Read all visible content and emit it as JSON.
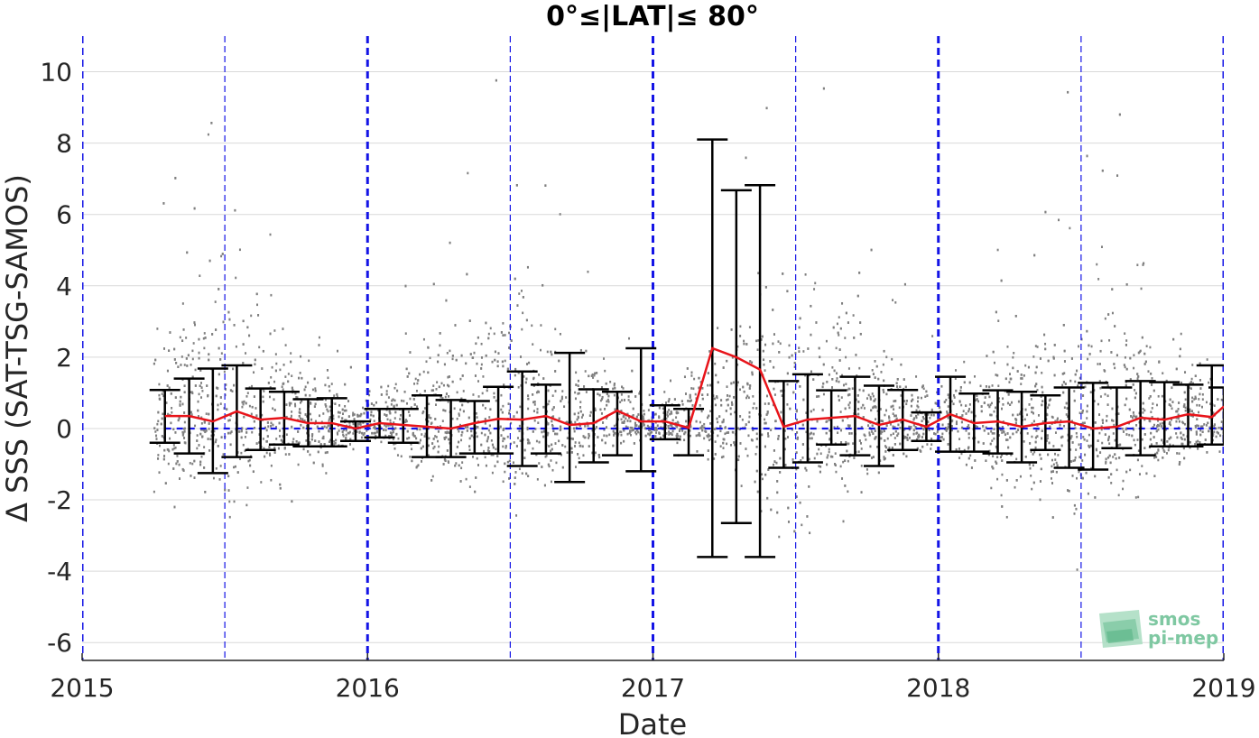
{
  "chart_data": {
    "type": "scatter",
    "title": "0°≤|LAT|≤ 80°",
    "xlabel": "Date",
    "ylabel": "Δ SSS (SAT-TSG-SAMOS)",
    "xlim": [
      2015.0,
      2019.0
    ],
    "ylim": [
      -6.5,
      11.0
    ],
    "x_ticks": [
      2015,
      2016,
      2017,
      2018,
      2019
    ],
    "x_tick_labels": [
      "2015",
      "2016",
      "2017",
      "2018",
      "2019"
    ],
    "y_ticks": [
      -6,
      -4,
      -2,
      0,
      2,
      4,
      6,
      8,
      10
    ],
    "y_tick_labels": [
      "-6",
      "-4",
      "-2",
      "0",
      "2",
      "4",
      "6",
      "8",
      "10"
    ],
    "grid": true,
    "zero_line": 0,
    "year_boundaries": [
      2015.0,
      2016.0,
      2017.0,
      2018.0,
      2019.0
    ],
    "mid_year_lines": [
      2015.5,
      2016.5,
      2017.5,
      2018.5
    ],
    "colors": {
      "scatter": "#808080",
      "mean_line": "#e8141a",
      "errorbar": "#000000",
      "reference": "#1414e6",
      "grid": "#d9d9d9"
    },
    "scatter_envelope": {
      "name": "individual differences",
      "x": [
        2015.25,
        2015.33,
        2015.42,
        2015.5,
        2015.58,
        2015.67,
        2015.75,
        2015.83,
        2015.92,
        2016.0,
        2016.08,
        2016.17,
        2016.25,
        2016.33,
        2016.42,
        2016.5,
        2016.58,
        2016.67,
        2016.75,
        2016.83,
        2016.92,
        2017.0,
        2017.08,
        2017.17,
        2017.25,
        2017.33,
        2017.42,
        2017.5,
        2017.58,
        2017.67,
        2017.75,
        2017.83,
        2017.92,
        2018.0,
        2018.08,
        2018.17,
        2018.25,
        2018.33,
        2018.42,
        2018.5,
        2018.58,
        2018.67,
        2018.75,
        2018.83,
        2018.92,
        2019.0
      ],
      "low": [
        -2.0,
        -2.5,
        -3.0,
        -3.5,
        -2.5,
        -2.0,
        -1.5,
        -1.5,
        -0.8,
        -0.4,
        -0.8,
        -1.5,
        -2.0,
        -2.5,
        -3.0,
        -3.0,
        -2.5,
        -2.0,
        -1.5,
        -1.2,
        -0.5,
        -0.4,
        -0.6,
        -1.0,
        -2.0,
        -3.0,
        -3.5,
        -4.0,
        -3.0,
        -2.5,
        -2.0,
        -1.5,
        -1.0,
        -0.8,
        -1.5,
        -2.0,
        -2.5,
        -2.5,
        -3.0,
        -3.5,
        -3.0,
        -2.5,
        -2.0,
        -1.5,
        -1.0,
        -0.8
      ],
      "high": [
        3.5,
        4.0,
        5.0,
        6.5,
        5.0,
        4.5,
        3.5,
        2.5,
        1.5,
        1.0,
        2.0,
        3.0,
        3.5,
        4.5,
        5.0,
        5.5,
        4.5,
        4.0,
        3.0,
        2.5,
        1.5,
        1.0,
        1.5,
        2.5,
        3.5,
        4.5,
        5.0,
        5.5,
        5.0,
        4.5,
        3.5,
        3.0,
        2.0,
        1.5,
        2.5,
        3.0,
        3.5,
        4.0,
        4.5,
        5.0,
        5.0,
        4.5,
        4.0,
        3.0,
        2.5,
        2.0
      ]
    },
    "mean_series": {
      "name": "monthly mean",
      "x": [
        2015.29,
        2015.375,
        2015.458,
        2015.542,
        2015.625,
        2015.708,
        2015.792,
        2015.875,
        2015.958,
        2016.042,
        2016.125,
        2016.208,
        2016.292,
        2016.375,
        2016.458,
        2016.542,
        2016.625,
        2016.708,
        2016.792,
        2016.875,
        2016.958,
        2017.042,
        2017.125,
        2017.208,
        2017.292,
        2017.375,
        2017.458,
        2017.542,
        2017.625,
        2017.708,
        2017.792,
        2017.875,
        2017.958,
        2018.042,
        2018.125,
        2018.208,
        2018.292,
        2018.375,
        2018.458,
        2018.542,
        2018.625,
        2018.708,
        2018.792,
        2018.875,
        2018.958,
        2019.0
      ],
      "values": [
        0.35,
        0.35,
        0.2,
        0.48,
        0.25,
        0.3,
        0.15,
        0.15,
        0.0,
        0.15,
        0.1,
        0.05,
        0.0,
        0.15,
        0.27,
        0.25,
        0.35,
        0.1,
        0.15,
        0.5,
        0.2,
        0.2,
        0.02,
        2.25,
        2.0,
        1.65,
        0.05,
        0.25,
        0.3,
        0.35,
        0.1,
        0.25,
        0.05,
        0.4,
        0.15,
        0.2,
        0.05,
        0.15,
        0.2,
        0.0,
        0.05,
        0.3,
        0.25,
        0.4,
        0.32,
        0.62
      ]
    },
    "error_bars": {
      "name": "standard deviation",
      "x": [
        2015.29,
        2015.375,
        2015.458,
        2015.542,
        2015.625,
        2015.708,
        2015.792,
        2015.875,
        2015.958,
        2016.042,
        2016.125,
        2016.208,
        2016.292,
        2016.375,
        2016.458,
        2016.542,
        2016.625,
        2016.708,
        2016.792,
        2016.875,
        2016.958,
        2017.042,
        2017.125,
        2017.208,
        2017.292,
        2017.375,
        2017.458,
        2017.542,
        2017.625,
        2017.708,
        2017.792,
        2017.875,
        2017.958,
        2018.042,
        2018.125,
        2018.208,
        2018.292,
        2018.375,
        2018.458,
        2018.542,
        2018.625,
        2018.708,
        2018.792,
        2018.875,
        2018.958,
        2019.0
      ],
      "low": [
        -0.4,
        -0.7,
        -1.25,
        -0.8,
        -0.6,
        -0.45,
        -0.5,
        -0.5,
        -0.35,
        -0.25,
        -0.4,
        -0.8,
        -0.8,
        -0.7,
        -0.7,
        -1.05,
        -0.7,
        -1.5,
        -0.95,
        -0.75,
        -1.2,
        -0.3,
        -0.75,
        -3.6,
        -2.65,
        -3.6,
        -1.1,
        -0.95,
        -0.45,
        -0.75,
        -1.05,
        -0.6,
        -0.35,
        -0.65,
        -0.65,
        -0.7,
        -0.95,
        -0.6,
        -1.1,
        -1.15,
        -0.55,
        -0.75,
        -0.5,
        -0.5,
        -0.45,
        -0.45
      ],
      "high": [
        1.08,
        1.4,
        1.68,
        1.77,
        1.12,
        1.03,
        0.82,
        0.85,
        0.2,
        0.55,
        0.55,
        0.93,
        0.8,
        0.77,
        1.17,
        1.6,
        1.23,
        2.12,
        1.1,
        1.03,
        2.25,
        0.65,
        0.55,
        8.1,
        6.68,
        6.82,
        1.33,
        1.52,
        1.07,
        1.45,
        1.2,
        1.08,
        0.45,
        1.45,
        0.98,
        1.07,
        1.03,
        0.93,
        1.15,
        1.28,
        1.15,
        1.33,
        1.3,
        1.23,
        1.77,
        1.15
      ]
    },
    "watermark": [
      "smos",
      "pi-mep"
    ]
  }
}
